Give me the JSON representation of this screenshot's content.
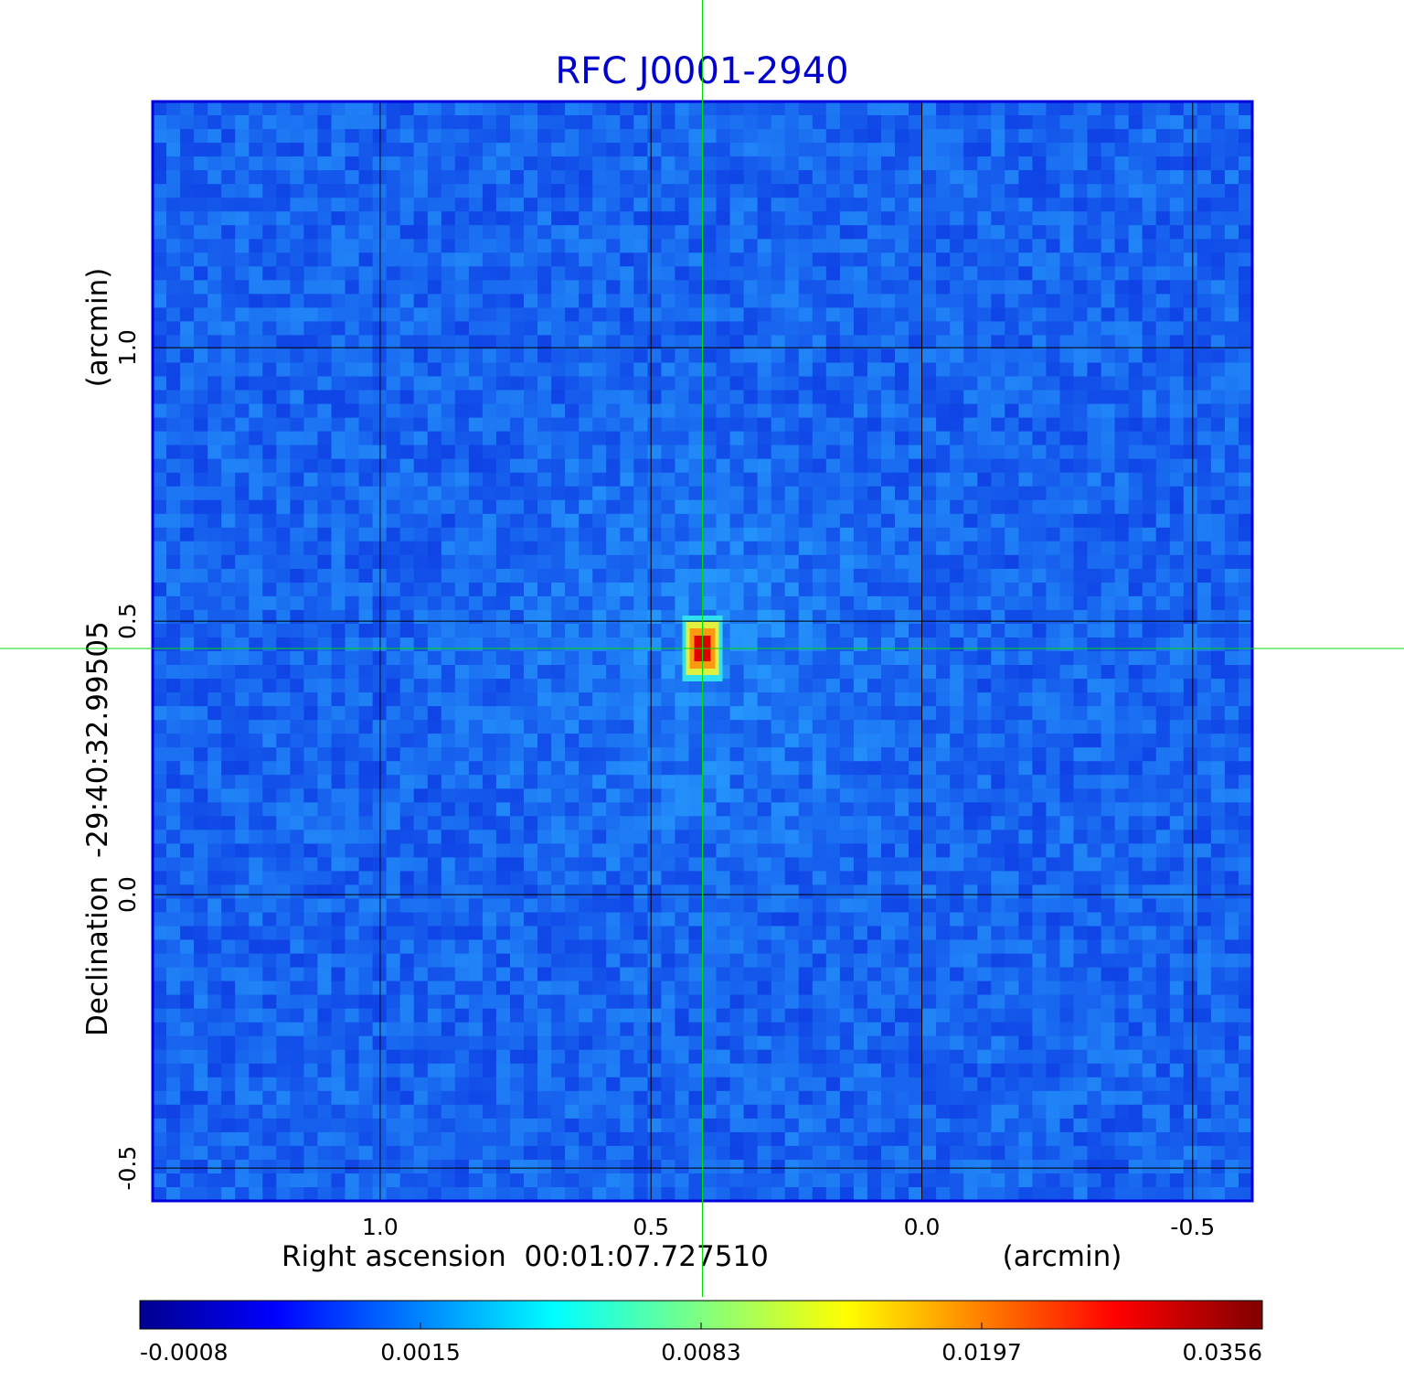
{
  "chart_data": {
    "type": "image",
    "title": "RFC J0001-2940",
    "x_label": "Right ascension  00:01:07.727510",
    "x_unit": "(arcmin)",
    "y_label": "Declination  -29:40:32.99505",
    "y_unit": "(arcmin)",
    "xlim": [
      1.42,
      -0.61
    ],
    "xticks": [
      {
        "value": 1,
        "label": "1.0"
      },
      0.5,
      {
        "value": 0,
        "label": "0.0"
      },
      -0.5
    ],
    "ylim": [
      -0.56,
      1.45
    ],
    "yticks": [
      {
        "value": 1,
        "label": "1.0"
      },
      0.5,
      {
        "value": 0,
        "label": "0.0"
      },
      -0.5
    ],
    "grid": true,
    "marker": {
      "x": 0.405,
      "y": 0.45,
      "color": "#00dd00"
    },
    "colormap": "jet",
    "colorbar_ticks": [
      -0.0008,
      0.0015,
      0.0083,
      0.0197,
      0.0356
    ]
  }
}
